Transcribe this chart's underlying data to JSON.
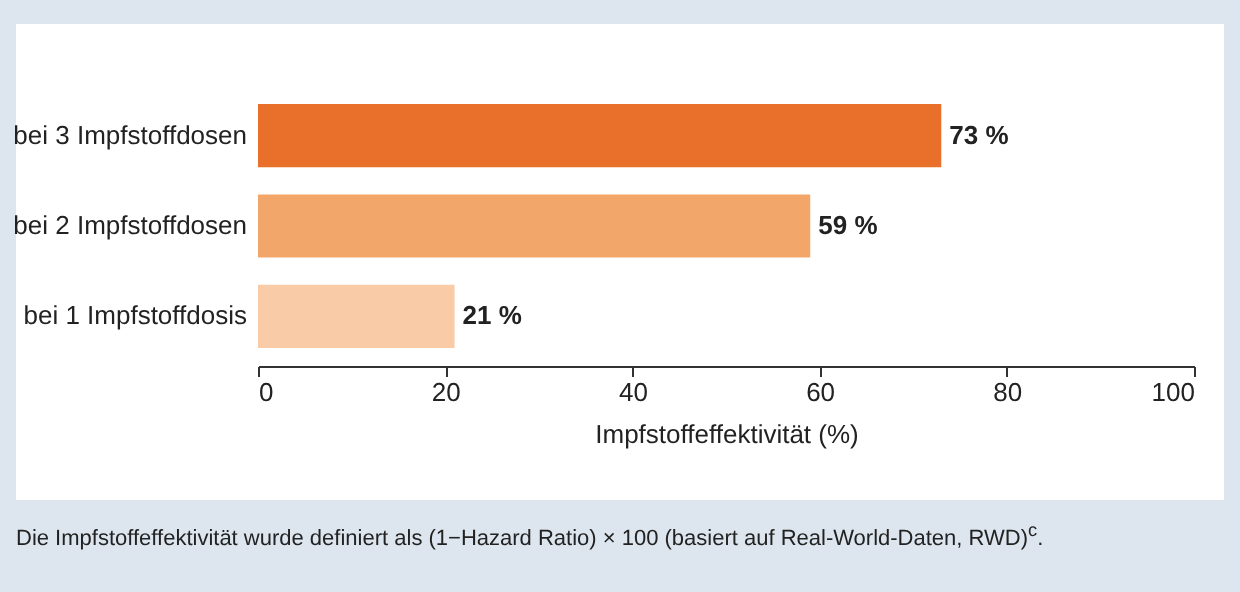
{
  "chart_data": {
    "type": "bar",
    "orientation": "horizontal",
    "categories": [
      "bei 3 Impfstoffdosen",
      "bei 2 Impfstoffdosen",
      "bei 1 Impfstoffdosis"
    ],
    "values": [
      73,
      59,
      21
    ],
    "colors": [
      "#e8702a",
      "#f3a66a",
      "#f9cba6"
    ],
    "value_labels": [
      "73 %",
      "59 %",
      "21 %"
    ],
    "xlim": [
      0,
      100
    ],
    "xticks": [
      0,
      20,
      40,
      60,
      80,
      100
    ],
    "xlabel": "Impfstoffeffektivität (%)",
    "grid": false,
    "annotations": [
      "Die Impfstoffeffektivität wurde definiert als (1−Hazard Ratio) × 100 (basiert auf Real-World-Daten, RWD)$^{c}$."
    ]
  }
}
